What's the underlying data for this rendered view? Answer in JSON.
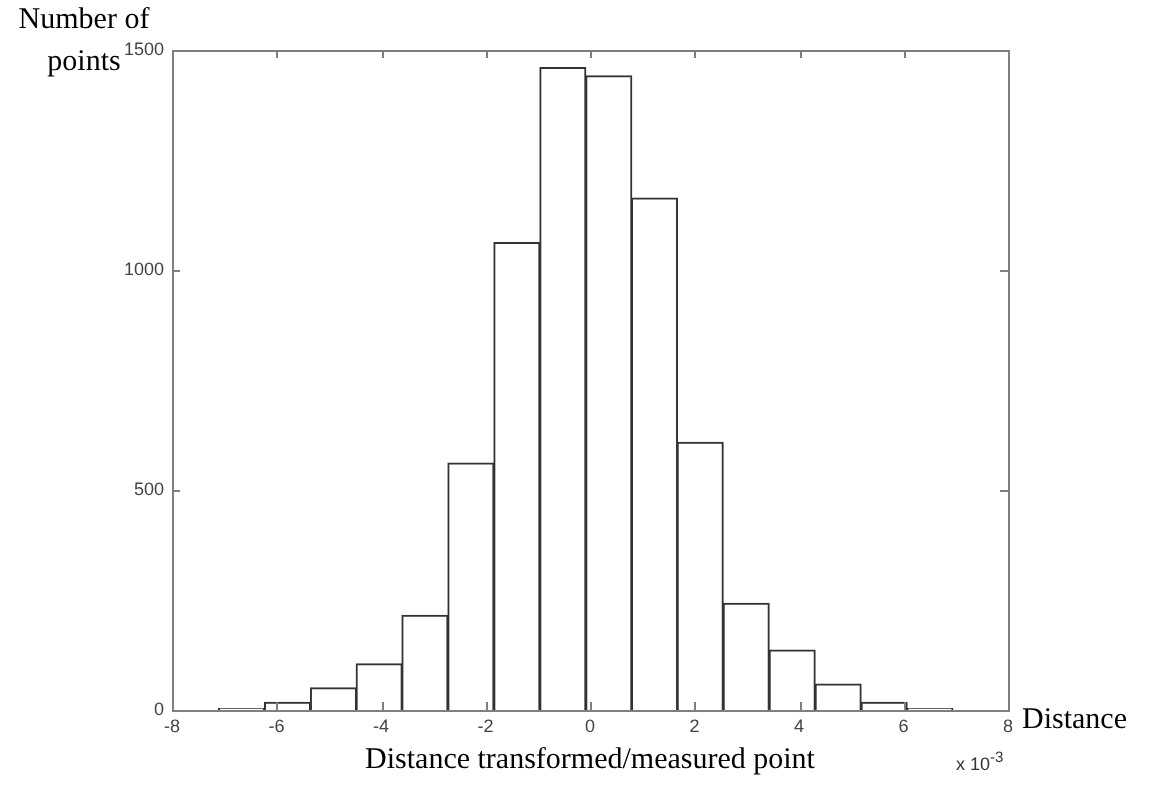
{
  "chart_data": {
    "type": "histogram",
    "ylabel": "Number of points",
    "xlabel": "Distance transformed/measured point",
    "annotations": [
      "Distance",
      "x 10$^{-3}$"
    ],
    "bins": [
      -7.11,
      -6.23,
      -5.35,
      -4.47,
      -3.6,
      -2.72,
      -1.84,
      -0.96,
      -0.08,
      0.8,
      1.67,
      2.55,
      3.43,
      4.31,
      5.19,
      6.07,
      6.94
    ],
    "values": [
      3,
      17,
      50,
      105,
      215,
      561,
      1062,
      1460,
      1441,
      1163,
      608,
      242,
      136,
      59,
      17,
      3
    ],
    "color": "#ffffff",
    "xlim": [
      -8,
      8
    ],
    "xticks": [
      -8,
      -6,
      -4,
      -2,
      0,
      2,
      4,
      6,
      8
    ],
    "ylim": [
      0,
      1500
    ],
    "yticks": [
      0,
      500,
      1000,
      1500
    ],
    "grid": false,
    "legend": false
  }
}
